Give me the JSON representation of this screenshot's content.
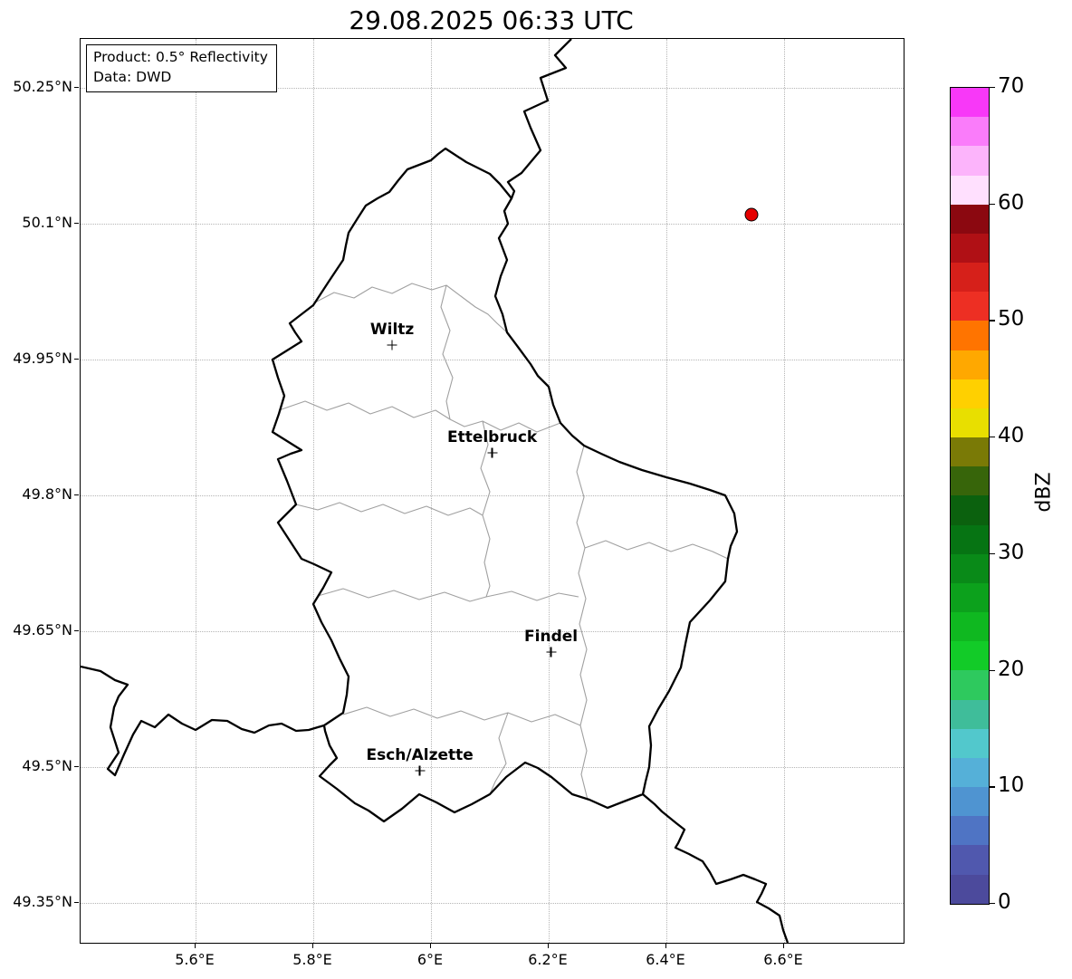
{
  "title": "29.08.2025 06:33 UTC",
  "info_box": {
    "line1": "Product: 0.5° Reflectivity",
    "line2": "Data: DWD"
  },
  "map": {
    "lon_range": [
      5.4046,
      6.8031
    ],
    "lat_range": [
      49.306,
      50.304
    ],
    "x_ticks": [
      {
        "value": 5.6,
        "label": "5.6°E"
      },
      {
        "value": 5.8,
        "label": "5.8°E"
      },
      {
        "value": 6.0,
        "label": "6°E"
      },
      {
        "value": 6.2,
        "label": "6.2°E"
      },
      {
        "value": 6.4,
        "label": "6.4°E"
      },
      {
        "value": 6.6,
        "label": "6.6°E"
      }
    ],
    "y_ticks": [
      {
        "value": 50.25,
        "label": "50.25°N"
      },
      {
        "value": 50.1,
        "label": "50.1°N"
      },
      {
        "value": 49.95,
        "label": "49.95°N"
      },
      {
        "value": 49.8,
        "label": "49.8°N"
      },
      {
        "value": 49.65,
        "label": "49.65°N"
      },
      {
        "value": 49.5,
        "label": "49.5°N"
      },
      {
        "value": 49.35,
        "label": "49.35°N"
      }
    ],
    "cities": [
      {
        "name": "Wiltz",
        "lat": 49.966,
        "lon": 5.934
      },
      {
        "name": "Ettelbruck",
        "lat": 49.847,
        "lon": 6.104
      },
      {
        "name": "Findel",
        "lat": 49.627,
        "lon": 6.204
      },
      {
        "name": "Esch/Alzette",
        "lat": 49.496,
        "lon": 5.981
      }
    ],
    "radar_point": {
      "lat": 50.11,
      "lon": 6.545,
      "color": "#e50000"
    }
  },
  "colorbar": {
    "label": "dBZ",
    "min": 0,
    "max": 70,
    "tick_values": [
      0,
      10,
      20,
      30,
      40,
      50,
      60,
      70
    ],
    "colors_bottom_to_top": [
      "#4c4a9c",
      "#5058ae",
      "#4f74c4",
      "#4f94d1",
      "#55b0d8",
      "#52c8cc",
      "#3fbd9a",
      "#2ec95e",
      "#12cb28",
      "#0fb820",
      "#0ca11c",
      "#098a18",
      "#067413",
      "#0b610e",
      "#37650a",
      "#7a7a06",
      "#e8df00",
      "#ffd000",
      "#ffa800",
      "#ff7400",
      "#ed2f23",
      "#d6201a",
      "#b01015",
      "#8b0810",
      "#ffe0fe",
      "#fcb4fb",
      "#fa7cfa",
      "#f838f8"
    ]
  }
}
